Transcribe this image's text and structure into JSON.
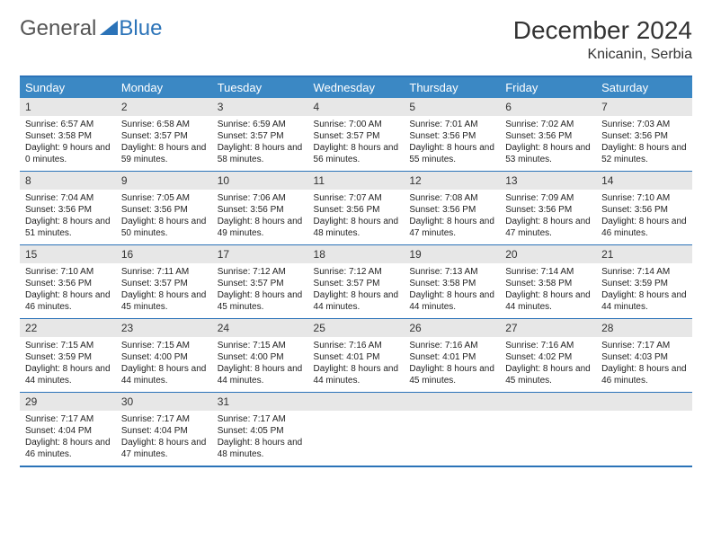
{
  "logo": {
    "text1": "General",
    "text2": "Blue"
  },
  "title": "December 2024",
  "location": "Knicanin, Serbia",
  "colors": {
    "header_bg": "#3b88c4",
    "border": "#2b73b8",
    "daynum_bg": "#e7e7e7",
    "text": "#333333"
  },
  "weekdays": [
    "Sunday",
    "Monday",
    "Tuesday",
    "Wednesday",
    "Thursday",
    "Friday",
    "Saturday"
  ],
  "weeks": [
    [
      {
        "n": "1",
        "sr": "6:57 AM",
        "ss": "3:58 PM",
        "dl": "9 hours and 0 minutes."
      },
      {
        "n": "2",
        "sr": "6:58 AM",
        "ss": "3:57 PM",
        "dl": "8 hours and 59 minutes."
      },
      {
        "n": "3",
        "sr": "6:59 AM",
        "ss": "3:57 PM",
        "dl": "8 hours and 58 minutes."
      },
      {
        "n": "4",
        "sr": "7:00 AM",
        "ss": "3:57 PM",
        "dl": "8 hours and 56 minutes."
      },
      {
        "n": "5",
        "sr": "7:01 AM",
        "ss": "3:56 PM",
        "dl": "8 hours and 55 minutes."
      },
      {
        "n": "6",
        "sr": "7:02 AM",
        "ss": "3:56 PM",
        "dl": "8 hours and 53 minutes."
      },
      {
        "n": "7",
        "sr": "7:03 AM",
        "ss": "3:56 PM",
        "dl": "8 hours and 52 minutes."
      }
    ],
    [
      {
        "n": "8",
        "sr": "7:04 AM",
        "ss": "3:56 PM",
        "dl": "8 hours and 51 minutes."
      },
      {
        "n": "9",
        "sr": "7:05 AM",
        "ss": "3:56 PM",
        "dl": "8 hours and 50 minutes."
      },
      {
        "n": "10",
        "sr": "7:06 AM",
        "ss": "3:56 PM",
        "dl": "8 hours and 49 minutes."
      },
      {
        "n": "11",
        "sr": "7:07 AM",
        "ss": "3:56 PM",
        "dl": "8 hours and 48 minutes."
      },
      {
        "n": "12",
        "sr": "7:08 AM",
        "ss": "3:56 PM",
        "dl": "8 hours and 47 minutes."
      },
      {
        "n": "13",
        "sr": "7:09 AM",
        "ss": "3:56 PM",
        "dl": "8 hours and 47 minutes."
      },
      {
        "n": "14",
        "sr": "7:10 AM",
        "ss": "3:56 PM",
        "dl": "8 hours and 46 minutes."
      }
    ],
    [
      {
        "n": "15",
        "sr": "7:10 AM",
        "ss": "3:56 PM",
        "dl": "8 hours and 46 minutes."
      },
      {
        "n": "16",
        "sr": "7:11 AM",
        "ss": "3:57 PM",
        "dl": "8 hours and 45 minutes."
      },
      {
        "n": "17",
        "sr": "7:12 AM",
        "ss": "3:57 PM",
        "dl": "8 hours and 45 minutes."
      },
      {
        "n": "18",
        "sr": "7:12 AM",
        "ss": "3:57 PM",
        "dl": "8 hours and 44 minutes."
      },
      {
        "n": "19",
        "sr": "7:13 AM",
        "ss": "3:58 PM",
        "dl": "8 hours and 44 minutes."
      },
      {
        "n": "20",
        "sr": "7:14 AM",
        "ss": "3:58 PM",
        "dl": "8 hours and 44 minutes."
      },
      {
        "n": "21",
        "sr": "7:14 AM",
        "ss": "3:59 PM",
        "dl": "8 hours and 44 minutes."
      }
    ],
    [
      {
        "n": "22",
        "sr": "7:15 AM",
        "ss": "3:59 PM",
        "dl": "8 hours and 44 minutes."
      },
      {
        "n": "23",
        "sr": "7:15 AM",
        "ss": "4:00 PM",
        "dl": "8 hours and 44 minutes."
      },
      {
        "n": "24",
        "sr": "7:15 AM",
        "ss": "4:00 PM",
        "dl": "8 hours and 44 minutes."
      },
      {
        "n": "25",
        "sr": "7:16 AM",
        "ss": "4:01 PM",
        "dl": "8 hours and 44 minutes."
      },
      {
        "n": "26",
        "sr": "7:16 AM",
        "ss": "4:01 PM",
        "dl": "8 hours and 45 minutes."
      },
      {
        "n": "27",
        "sr": "7:16 AM",
        "ss": "4:02 PM",
        "dl": "8 hours and 45 minutes."
      },
      {
        "n": "28",
        "sr": "7:17 AM",
        "ss": "4:03 PM",
        "dl": "8 hours and 46 minutes."
      }
    ],
    [
      {
        "n": "29",
        "sr": "7:17 AM",
        "ss": "4:04 PM",
        "dl": "8 hours and 46 minutes."
      },
      {
        "n": "30",
        "sr": "7:17 AM",
        "ss": "4:04 PM",
        "dl": "8 hours and 47 minutes."
      },
      {
        "n": "31",
        "sr": "7:17 AM",
        "ss": "4:05 PM",
        "dl": "8 hours and 48 minutes."
      },
      null,
      null,
      null,
      null
    ]
  ]
}
